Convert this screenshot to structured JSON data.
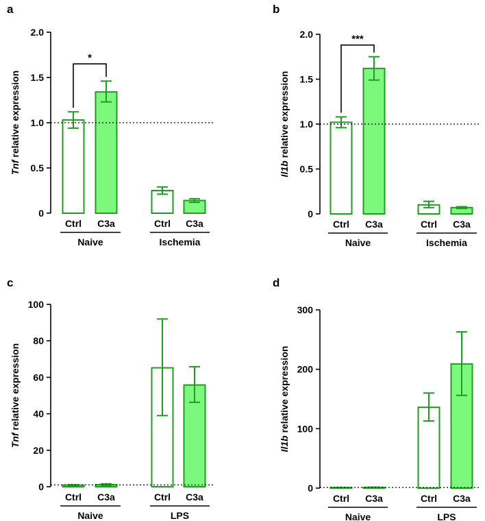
{
  "colors": {
    "accent": "#1e9e1e",
    "fill": "#7cf97c",
    "axis": "#000000"
  },
  "chart_data": [
    {
      "type": "bar",
      "panel": "a",
      "ylabel_italic": "Tnf",
      "ylabel_rest": " relative expression",
      "ylim": [
        0,
        2.0
      ],
      "yticks": [
        "0",
        "0.5",
        "1.0",
        "1.5",
        "2.0"
      ],
      "ytick_values": [
        0,
        0.5,
        1.0,
        1.5,
        2.0
      ],
      "reference_line": 1.0,
      "groups": [
        {
          "label": "Naive",
          "bars": [
            {
              "label": "Ctrl",
              "value": 1.03,
              "err_low": 0.94,
              "err_high": 1.12,
              "filled": false
            },
            {
              "label": "C3a",
              "value": 1.34,
              "err_low": 1.23,
              "err_high": 1.46,
              "filled": true
            }
          ]
        },
        {
          "label": "Ischemia",
          "bars": [
            {
              "label": "Ctrl",
              "value": 0.25,
              "err_low": 0.21,
              "err_high": 0.29,
              "filled": false
            },
            {
              "label": "C3a",
              "value": 0.14,
              "err_low": 0.12,
              "err_high": 0.16,
              "filled": true
            }
          ]
        }
      ],
      "significance": [
        {
          "text": "*",
          "from_bar": 0,
          "to_bar": 1,
          "level": 1.65
        }
      ]
    },
    {
      "type": "bar",
      "panel": "b",
      "ylabel_italic": "Il1b",
      "ylabel_rest": " relative expression",
      "ylim": [
        0,
        2.0
      ],
      "yticks": [
        "0",
        "0.5",
        "1.0",
        "1.5",
        "2.0"
      ],
      "ytick_values": [
        0,
        0.5,
        1.0,
        1.5,
        2.0
      ],
      "reference_line": 1.0,
      "groups": [
        {
          "label": "Naive",
          "bars": [
            {
              "label": "Ctrl",
              "value": 1.02,
              "err_low": 0.96,
              "err_high": 1.08,
              "filled": false
            },
            {
              "label": "C3a",
              "value": 1.62,
              "err_low": 1.49,
              "err_high": 1.75,
              "filled": true
            }
          ]
        },
        {
          "label": "Ischemia",
          "bars": [
            {
              "label": "Ctrl",
              "value": 0.1,
              "err_low": 0.07,
              "err_high": 0.14,
              "filled": false
            },
            {
              "label": "C3a",
              "value": 0.07,
              "err_low": 0.06,
              "err_high": 0.08,
              "filled": true
            }
          ]
        }
      ],
      "significance": [
        {
          "text": "***",
          "from_bar": 0,
          "to_bar": 1,
          "level": 1.88
        }
      ]
    },
    {
      "type": "bar",
      "panel": "c",
      "ylabel_italic": "Tnf",
      "ylabel_rest": " relative expression",
      "ylim": [
        0,
        100
      ],
      "yticks": [
        "0",
        "20",
        "40",
        "60",
        "80",
        "100"
      ],
      "ytick_values": [
        0,
        20,
        40,
        60,
        80,
        100
      ],
      "reference_line": 1.0,
      "groups": [
        {
          "label": "Naive",
          "bars": [
            {
              "label": "Ctrl",
              "value": 0.9,
              "err_low": 0.7,
              "err_high": 1.1,
              "filled": false
            },
            {
              "label": "C3a",
              "value": 1.1,
              "err_low": 0.8,
              "err_high": 1.6,
              "filled": true
            }
          ]
        },
        {
          "label": "LPS",
          "bars": [
            {
              "label": "Ctrl",
              "value": 65.2,
              "err_low": 39.0,
              "err_high": 92.0,
              "filled": false
            },
            {
              "label": "C3a",
              "value": 55.8,
              "err_low": 46.3,
              "err_high": 65.8,
              "filled": true
            }
          ]
        }
      ],
      "significance": []
    },
    {
      "type": "bar",
      "panel": "d",
      "ylabel_italic": "Il1b",
      "ylabel_rest": " relative expression",
      "ylim": [
        0,
        300
      ],
      "yticks": [
        "0",
        "100",
        "200",
        "300"
      ],
      "ytick_values": [
        0,
        100,
        200,
        300
      ],
      "reference_line": 1.0,
      "groups": [
        {
          "label": "Naive",
          "bars": [
            {
              "label": "Ctrl",
              "value": 1.0,
              "err_low": 0.7,
              "err_high": 1.3,
              "filled": false
            },
            {
              "label": "C3a",
              "value": 1.2,
              "err_low": 0.8,
              "err_high": 1.7,
              "filled": true
            }
          ]
        },
        {
          "label": "LPS",
          "bars": [
            {
              "label": "Ctrl",
              "value": 136,
              "err_low": 113,
              "err_high": 160,
              "filled": false
            },
            {
              "label": "C3a",
              "value": 209,
              "err_low": 156,
              "err_high": 263,
              "filled": true
            }
          ]
        }
      ],
      "significance": []
    }
  ]
}
